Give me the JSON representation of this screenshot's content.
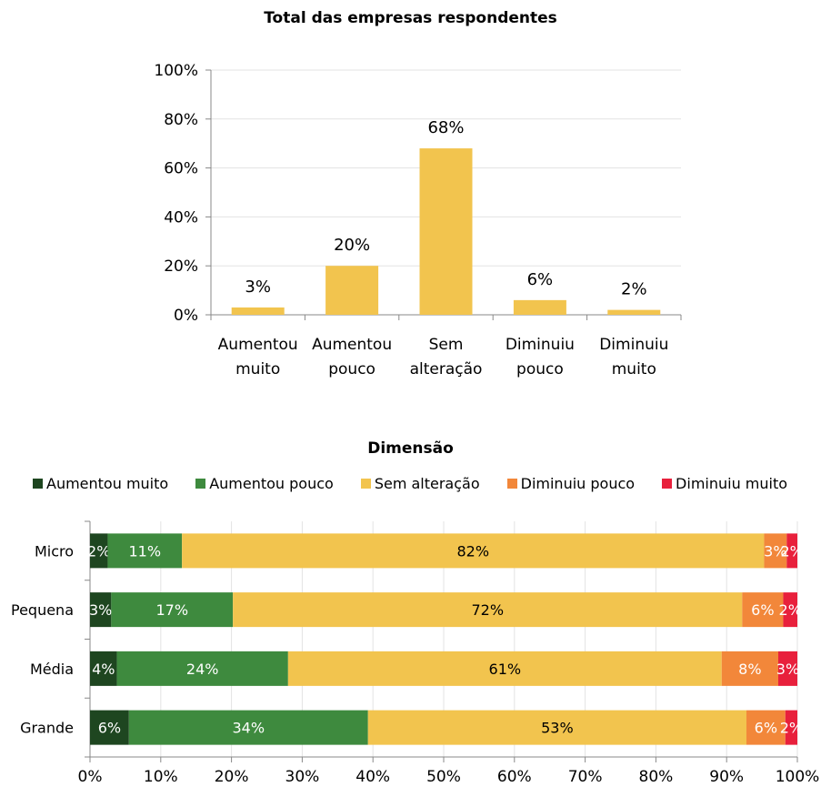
{
  "chart_data": [
    {
      "type": "bar",
      "title": "Total das empresas respondentes",
      "categories": [
        [
          "Aumentou",
          "muito"
        ],
        [
          "Aumentou",
          "pouco"
        ],
        [
          "Sem",
          "alteração"
        ],
        [
          "Diminuiu",
          "pouco"
        ],
        [
          "Diminuiu",
          "muito"
        ]
      ],
      "values": [
        3,
        20,
        68,
        6,
        2
      ],
      "value_labels": [
        "3%",
        "20%",
        "68%",
        "6%",
        "2%"
      ],
      "ylim": [
        0,
        100
      ],
      "yticks": [
        "0%",
        "20%",
        "40%",
        "60%",
        "80%",
        "100%"
      ],
      "color": "#F2C44E",
      "grid": true
    },
    {
      "type": "stacked-bar-horizontal",
      "title": "Dimensão",
      "categories": [
        "Micro",
        "Pequena",
        "Média",
        "Grande"
      ],
      "series": [
        {
          "name": "Aumentou muito",
          "color": "#1E4620",
          "values": [
            2.5,
            3,
            3.8,
            5.5
          ],
          "labels": [
            "2%",
            "3%",
            "4%",
            "6%"
          ]
        },
        {
          "name": "Aumentou pouco",
          "color": "#3E8A3E",
          "values": [
            10.5,
            17.2,
            24.2,
            33.8
          ],
          "labels": [
            "11%",
            "17%",
            "24%",
            "34%"
          ]
        },
        {
          "name": "Sem alteração",
          "color": "#F2C44E",
          "values": [
            82.3,
            72,
            61.3,
            53.5
          ],
          "labels": [
            "82%",
            "72%",
            "61%",
            "53%"
          ]
        },
        {
          "name": "Diminuiu pouco",
          "color": "#F2873A",
          "values": [
            3.2,
            5.8,
            8,
            5.5
          ],
          "labels": [
            "3%",
            "6%",
            "8%",
            "6%"
          ]
        },
        {
          "name": "Diminuiu muito",
          "color": "#E8203C",
          "values": [
            1.5,
            2,
            2.7,
            1.7
          ],
          "labels": [
            "2%",
            "2%",
            "3%",
            "2%"
          ]
        }
      ],
      "xlim": [
        0,
        100
      ],
      "xticks": [
        "0%",
        "10%",
        "20%",
        "30%",
        "40%",
        "50%",
        "60%",
        "70%",
        "80%",
        "90%",
        "100%"
      ],
      "legend": "top",
      "grid": true
    }
  ]
}
